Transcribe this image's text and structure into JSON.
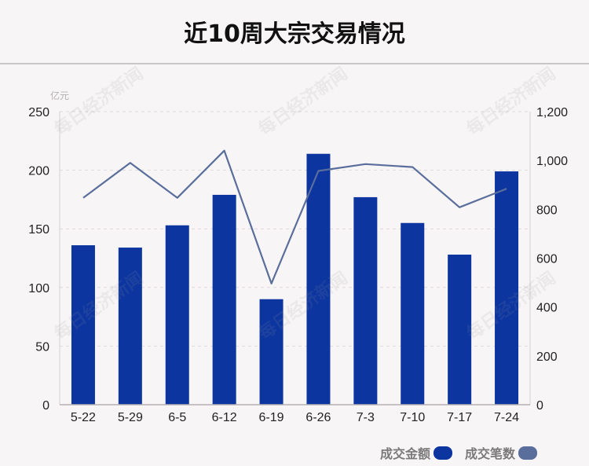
{
  "title": "近10周大宗交易情况",
  "watermark_text": "每日经济新闻",
  "colors": {
    "bar": "#0c35a0",
    "line": "#5a6e9c",
    "background": "#f8f5f6"
  },
  "legend": [
    {
      "label": "成交金额",
      "color": "#0c35a0"
    },
    {
      "label": "成交笔数",
      "color": "#5a6e9c"
    }
  ],
  "chart_data": {
    "type": "bar",
    "title": "近10周大宗交易情况",
    "categories": [
      "5-22",
      "5-29",
      "6-5",
      "6-12",
      "6-19",
      "6-26",
      "7-3",
      "7-10",
      "7-17",
      "7-24"
    ],
    "left_axis": {
      "unit": "亿元",
      "ylim": [
        0,
        250
      ],
      "ticks": [
        "0",
        "50",
        "100",
        "150",
        "200",
        "250"
      ]
    },
    "right_axis": {
      "ylim": [
        0,
        1200
      ],
      "ticks": [
        "0",
        "200",
        "400",
        "600",
        "800",
        "1,000",
        "1,200"
      ]
    },
    "series": [
      {
        "name": "成交金额",
        "type": "bar",
        "axis": "left",
        "values": [
          136,
          134,
          153,
          179,
          90,
          214,
          177,
          155,
          128,
          199
        ]
      },
      {
        "name": "成交笔数",
        "type": "line",
        "axis": "right",
        "values": [
          847,
          990,
          847,
          1040,
          496,
          957,
          985,
          973,
          808,
          884
        ]
      }
    ],
    "grid": "dashed horizontal",
    "legend_position": "bottom-right"
  }
}
